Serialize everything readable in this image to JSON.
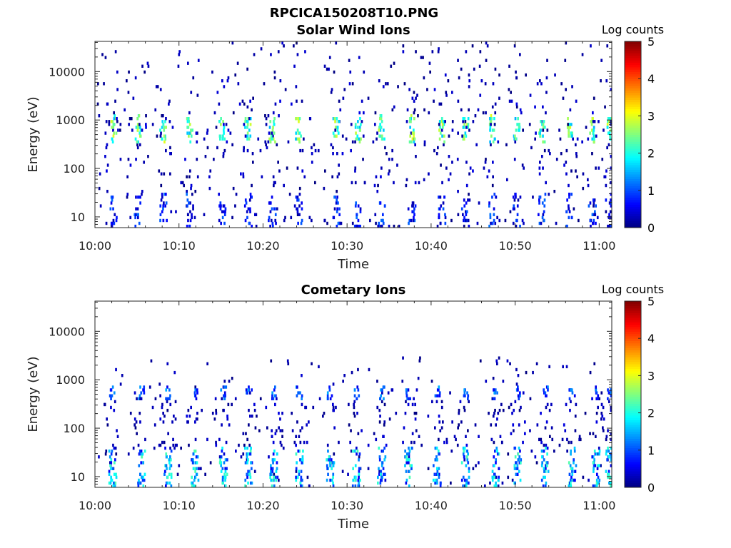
{
  "figure_title": "RPCICA150208T10.PNG",
  "chart_data": [
    {
      "type": "heatmap",
      "title": "Solar Wind Ions",
      "xlabel": "Time",
      "ylabel": "Energy (eV)",
      "x_tick_labels": [
        "10:00",
        "10:10",
        "10:20",
        "10:30",
        "10:40",
        "10:50",
        "11:00"
      ],
      "x_range_minutes": [
        0,
        61.5
      ],
      "y_scale": "log",
      "y_tick_values": [
        10,
        100,
        1000,
        10000
      ],
      "y_tick_labels": [
        "10",
        "100",
        "1000",
        "10000"
      ],
      "ylim": [
        6,
        42000
      ],
      "colorbar": {
        "label": "Log counts",
        "range": [
          0,
          5
        ],
        "tick_labels": [
          "0",
          "1",
          "2",
          "3",
          "4",
          "5"
        ],
        "colormap": "jet"
      },
      "features": [
        {
          "name": "solar wind beam",
          "energy_eV": [
            350,
            1200
          ],
          "log_counts": [
            1.5,
            3.0
          ]
        },
        {
          "name": "low energy bursts",
          "energy_eV": [
            6,
            30
          ],
          "log_counts": [
            0.2,
            1.2
          ]
        },
        {
          "name": "sparse background",
          "energy_eV": [
            6,
            42000
          ],
          "log_counts": [
            0,
            0.5
          ]
        }
      ],
      "burst_minutes": [
        2.1,
        5.0,
        8.0,
        11.2,
        15.0,
        18.1,
        21.0,
        24.1,
        28.6,
        31.2,
        34.0,
        37.6,
        41.2,
        44.0,
        47.2,
        50.1,
        53.1,
        56.4,
        59.1,
        61.1
      ]
    },
    {
      "type": "heatmap",
      "title": "Cometary Ions",
      "xlabel": "Time",
      "ylabel": "Energy (eV)",
      "x_tick_labels": [
        "10:00",
        "10:10",
        "10:20",
        "10:30",
        "10:40",
        "10:50",
        "11:00"
      ],
      "x_range_minutes": [
        0,
        61.5
      ],
      "y_scale": "log",
      "y_tick_values": [
        10,
        100,
        1000,
        10000
      ],
      "y_tick_labels": [
        "10",
        "100",
        "1000",
        "10000"
      ],
      "ylim": [
        6,
        42000
      ],
      "colorbar": {
        "label": "Log counts",
        "range": [
          0,
          5
        ],
        "tick_labels": [
          "0",
          "1",
          "2",
          "3",
          "4",
          "5"
        ],
        "colormap": "jet"
      },
      "features": [
        {
          "name": "cometary ions",
          "energy_eV": [
            6,
            40
          ],
          "log_counts": [
            0.5,
            2.3
          ]
        },
        {
          "name": "accelerated ions",
          "energy_eV": [
            400,
            700
          ],
          "log_counts": [
            0.5,
            1.5
          ]
        },
        {
          "name": "sparse background",
          "energy_eV": [
            6,
            8000
          ],
          "log_counts": [
            0,
            0.5
          ]
        }
      ],
      "burst_minutes": [
        2.0,
        5.4,
        8.6,
        11.8,
        15.2,
        18.2,
        21.2,
        24.2,
        27.9,
        31.0,
        34.0,
        37.2,
        40.6,
        44.0,
        47.6,
        50.2,
        53.5,
        56.7,
        59.5,
        61.1
      ]
    }
  ]
}
